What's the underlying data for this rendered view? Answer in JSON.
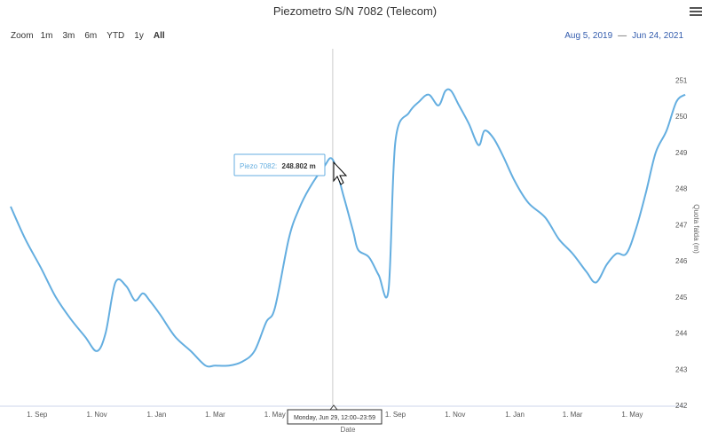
{
  "header": {
    "title": "Piezometro S/N 7082 (Telecom)"
  },
  "zoom": {
    "label": "Zoom",
    "buttons": [
      "1m",
      "3m",
      "6m",
      "YTD",
      "1y",
      "All"
    ],
    "selected": "All"
  },
  "range": {
    "from": "Aug 5, 2019",
    "separator": "—",
    "to": "Jun 24, 2021"
  },
  "tooltip": {
    "series": "Piezo 7082:",
    "value": "248.802 m",
    "date": "Monday, Jun 29, 12:00–23:59"
  },
  "chart_data": {
    "type": "line",
    "xlabel": "Date",
    "ylabel": "Quota falda (m)",
    "x_ticks": [
      "1. Sep",
      "1. Nov",
      "1. Jan",
      "1. Mar",
      "1. May",
      "1. Sep",
      "1. Nov",
      "1. Jan",
      "1. Mar",
      "1. May"
    ],
    "y_ticks": [
      242,
      243,
      244,
      245,
      246,
      247,
      248,
      249,
      250,
      251
    ],
    "ylim": [
      242,
      251.5
    ],
    "x": [
      "2019-08-05",
      "2019-08-20",
      "2019-09-05",
      "2019-09-20",
      "2019-10-05",
      "2019-10-20",
      "2019-11-01",
      "2019-11-10",
      "2019-11-20",
      "2019-12-01",
      "2019-12-10",
      "2019-12-18",
      "2019-12-25",
      "2020-01-05",
      "2020-01-20",
      "2020-02-05",
      "2020-02-20",
      "2020-03-01",
      "2020-03-15",
      "2020-03-28",
      "2020-04-10",
      "2020-04-22",
      "2020-05-01",
      "2020-05-15",
      "2020-05-25",
      "2020-06-05",
      "2020-06-20",
      "2020-06-29",
      "2020-07-10",
      "2020-07-20",
      "2020-07-25",
      "2020-08-05",
      "2020-08-15",
      "2020-08-25",
      "2020-09-01",
      "2020-09-15",
      "2020-09-25",
      "2020-10-05",
      "2020-10-15",
      "2020-10-22",
      "2020-10-28",
      "2020-11-05",
      "2020-11-15",
      "2020-11-25",
      "2020-12-01",
      "2020-12-10",
      "2020-12-20",
      "2021-01-01",
      "2021-01-15",
      "2021-02-01",
      "2021-02-15",
      "2021-03-01",
      "2021-03-15",
      "2021-03-25",
      "2021-04-05",
      "2021-04-15",
      "2021-04-25",
      "2021-05-05",
      "2021-05-15",
      "2021-05-25",
      "2021-06-05",
      "2021-06-15",
      "2021-06-24"
    ],
    "series": [
      {
        "values": [
          247.5,
          246.6,
          245.8,
          245.0,
          244.4,
          243.9,
          243.5,
          244.0,
          245.4,
          245.3,
          244.9,
          245.1,
          244.9,
          244.5,
          243.9,
          243.5,
          243.1,
          243.1,
          243.1,
          243.2,
          243.5,
          244.3,
          244.7,
          246.6,
          247.4,
          248.0,
          248.6,
          248.8,
          247.8,
          246.8,
          246.3,
          246.1,
          245.6,
          245.2,
          249.3,
          250.1,
          250.4,
          250.6,
          250.3,
          250.7,
          250.7,
          250.3,
          249.8,
          249.2,
          249.6,
          249.4,
          248.9,
          248.2,
          247.6,
          247.2,
          246.6,
          246.2,
          245.7,
          245.4,
          245.9,
          246.2,
          246.2,
          246.9,
          247.9,
          249.0,
          249.6,
          250.4,
          250.6
        ]
      }
    ],
    "grid": false,
    "legend": "none",
    "colors": {
      "line": "#64aee0",
      "tooltip_border": "#64aee0"
    }
  }
}
